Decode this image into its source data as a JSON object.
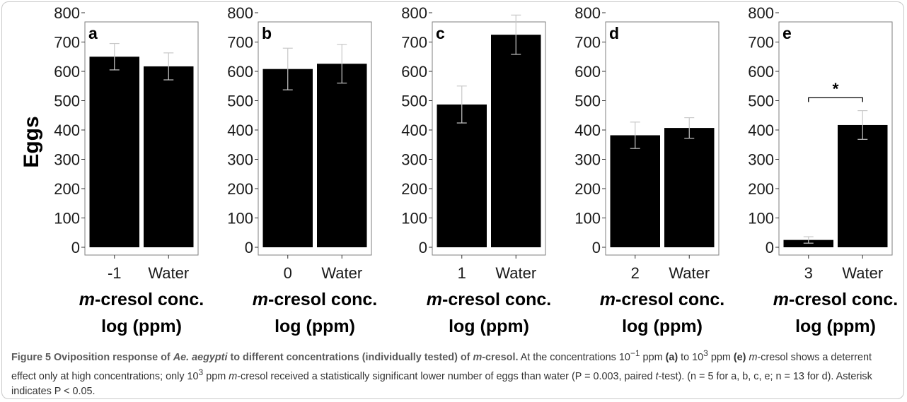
{
  "ylabel": "Eggs",
  "yticks": [
    "0",
    "100",
    "200",
    "300",
    "400",
    "500",
    "600",
    "700",
    "800"
  ],
  "xlabel_line1_italic": "m",
  "xlabel_line1_rest": "-cresol conc.",
  "xlabel_line2": "log (ppm)",
  "panels": [
    {
      "letter": "a",
      "categories": [
        "-1",
        "Water"
      ],
      "values": [
        650,
        617
      ],
      "errors": [
        45,
        46
      ]
    },
    {
      "letter": "b",
      "categories": [
        "0",
        "Water"
      ],
      "values": [
        608,
        626
      ],
      "errors": [
        71,
        66
      ]
    },
    {
      "letter": "c",
      "categories": [
        "1",
        "Water"
      ],
      "values": [
        487,
        725
      ],
      "errors": [
        63,
        67
      ]
    },
    {
      "letter": "d",
      "categories": [
        "2",
        "Water"
      ],
      "values": [
        382,
        407
      ],
      "errors": [
        45,
        35
      ]
    },
    {
      "letter": "e",
      "categories": [
        "3",
        "Water"
      ],
      "values": [
        25,
        417
      ],
      "errors": [
        11,
        49
      ],
      "significance": "*"
    }
  ],
  "chart_data": {
    "type": "bar",
    "ylabel": "Eggs",
    "ylim": [
      0,
      800
    ],
    "xlabel": "m-cresol conc. log (ppm)",
    "panels": [
      {
        "label": "a",
        "categories": [
          "-1",
          "Water"
        ],
        "values": [
          650,
          617
        ],
        "error_bars": [
          45,
          46
        ]
      },
      {
        "label": "b",
        "categories": [
          "0",
          "Water"
        ],
        "values": [
          608,
          626
        ],
        "error_bars": [
          71,
          66
        ]
      },
      {
        "label": "c",
        "categories": [
          "1",
          "Water"
        ],
        "values": [
          487,
          725
        ],
        "error_bars": [
          63,
          67
        ]
      },
      {
        "label": "d",
        "categories": [
          "2",
          "Water"
        ],
        "values": [
          382,
          407
        ],
        "error_bars": [
          45,
          35
        ]
      },
      {
        "label": "e",
        "categories": [
          "3",
          "Water"
        ],
        "values": [
          25,
          417
        ],
        "error_bars": [
          11,
          49
        ],
        "annotation": "*"
      }
    ]
  },
  "caption": {
    "title_a": "Figure 5 Oviposition response of ",
    "title_b": "Ae. aegypti",
    "title_c": " to different concentrations (individually tested) of ",
    "title_d": "m",
    "title_e": "-cresol.",
    "t1": " At the concentrations 10",
    "sup1": "−1",
    "t2": " ppm ",
    "b1": "(a)",
    "t3": " to 10",
    "sup2": "3",
    "t4": " ppm ",
    "b2": "(e)",
    "t5": " ",
    "i1": "m",
    "t6": "-cresol shows a deterrent effect only at high concentrations; only 10",
    "sup3": "3",
    "t7": " ppm ",
    "i2": "m",
    "t8": "-cresol received a statistically significant lower number of eggs than water (P = 0.003, paired ",
    "i3": "t",
    "t9": "-test). (n = 5 for a, b, c, e; n = 13 for d). Asterisk indicates P < 0.05."
  }
}
